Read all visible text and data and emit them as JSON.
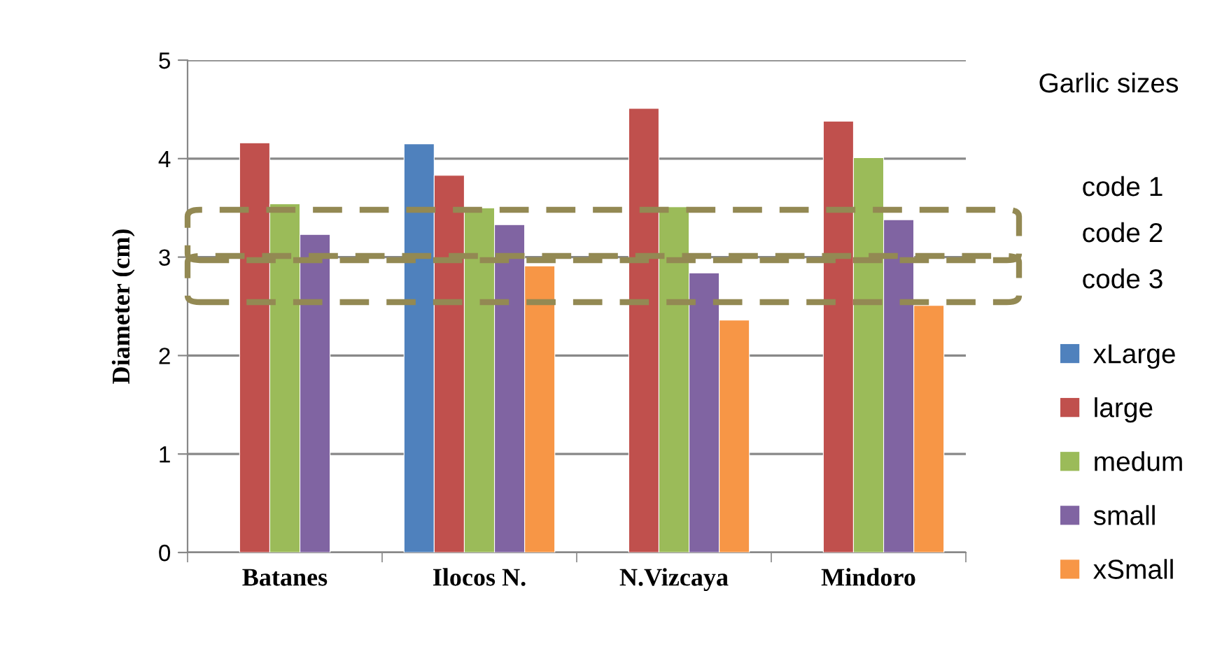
{
  "chart_data": {
    "type": "bar",
    "ylabel": "Diameter (cm)",
    "legend_title": "Garlic sizes",
    "categories": [
      "Batanes",
      "Ilocos N.",
      "N.Vizcaya",
      "Mindoro"
    ],
    "series": [
      {
        "name": "xLarge",
        "color": "#4f81bd",
        "values": [
          null,
          4.15,
          null,
          null
        ]
      },
      {
        "name": "large",
        "color": "#c0504d",
        "values": [
          4.16,
          3.83,
          4.51,
          4.38
        ]
      },
      {
        "name": "medum",
        "color": "#9bbb59",
        "values": [
          3.54,
          3.5,
          3.51,
          4.01
        ]
      },
      {
        "name": "small",
        "color": "#8064a2",
        "values": [
          3.23,
          3.33,
          2.84,
          3.38
        ]
      },
      {
        "name": "xSmall",
        "color": "#f79646",
        "values": [
          null,
          2.91,
          2.36,
          2.51
        ]
      }
    ],
    "ylim": [
      0,
      5
    ],
    "yticks": [
      0,
      1,
      2,
      3,
      4,
      5
    ],
    "grid": "y",
    "legend": "right",
    "annotations": [
      "code 1",
      "code 2",
      "code 3"
    ]
  }
}
